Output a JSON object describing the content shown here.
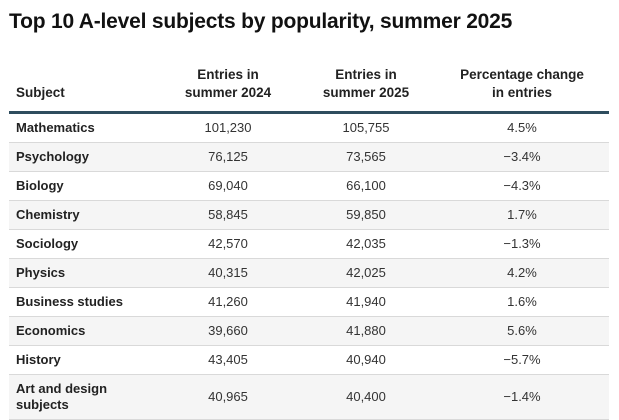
{
  "chart_data": {
    "type": "table",
    "title": "Top 10 A-level subjects by popularity, summer 2025",
    "columns": [
      "Subject",
      "Entries in summer 2024",
      "Entries in summer 2025",
      "Percentage change in entries"
    ],
    "header_lines": [
      [
        "Subject"
      ],
      [
        "Entries in",
        "summer 2024"
      ],
      [
        "Entries in",
        "summer 2025"
      ],
      [
        "Percentage change",
        "in entries"
      ]
    ],
    "rows": [
      {
        "subject": "Mathematics",
        "entries_2024": "101,230",
        "entries_2025": "105,755",
        "change": "4.5%"
      },
      {
        "subject": "Psychology",
        "entries_2024": "76,125",
        "entries_2025": "73,565",
        "change": "−3.4%"
      },
      {
        "subject": "Biology",
        "entries_2024": "69,040",
        "entries_2025": "66,100",
        "change": "−4.3%"
      },
      {
        "subject": "Chemistry",
        "entries_2024": "58,845",
        "entries_2025": "59,850",
        "change": "1.7%"
      },
      {
        "subject": "Sociology",
        "entries_2024": "42,570",
        "entries_2025": "42,035",
        "change": "−1.3%"
      },
      {
        "subject": "Physics",
        "entries_2024": "40,315",
        "entries_2025": "42,025",
        "change": "4.2%"
      },
      {
        "subject": "Business studies",
        "entries_2024": "41,260",
        "entries_2025": "41,940",
        "change": "1.6%"
      },
      {
        "subject": "Economics",
        "entries_2024": "39,660",
        "entries_2025": "41,880",
        "change": "5.6%"
      },
      {
        "subject": "History",
        "entries_2024": "43,405",
        "entries_2025": "40,940",
        "change": "−5.7%"
      },
      {
        "subject": "Art and design subjects",
        "subject_lines": [
          "Art and design",
          "subjects"
        ],
        "entries_2024": "40,965",
        "entries_2025": "40,400",
        "change": "−1.4%"
      }
    ],
    "colors": {
      "header_rule": "#2e4d5e",
      "row_stripe": "#f5f5f5",
      "row_divider": "#d9d9d9"
    }
  }
}
